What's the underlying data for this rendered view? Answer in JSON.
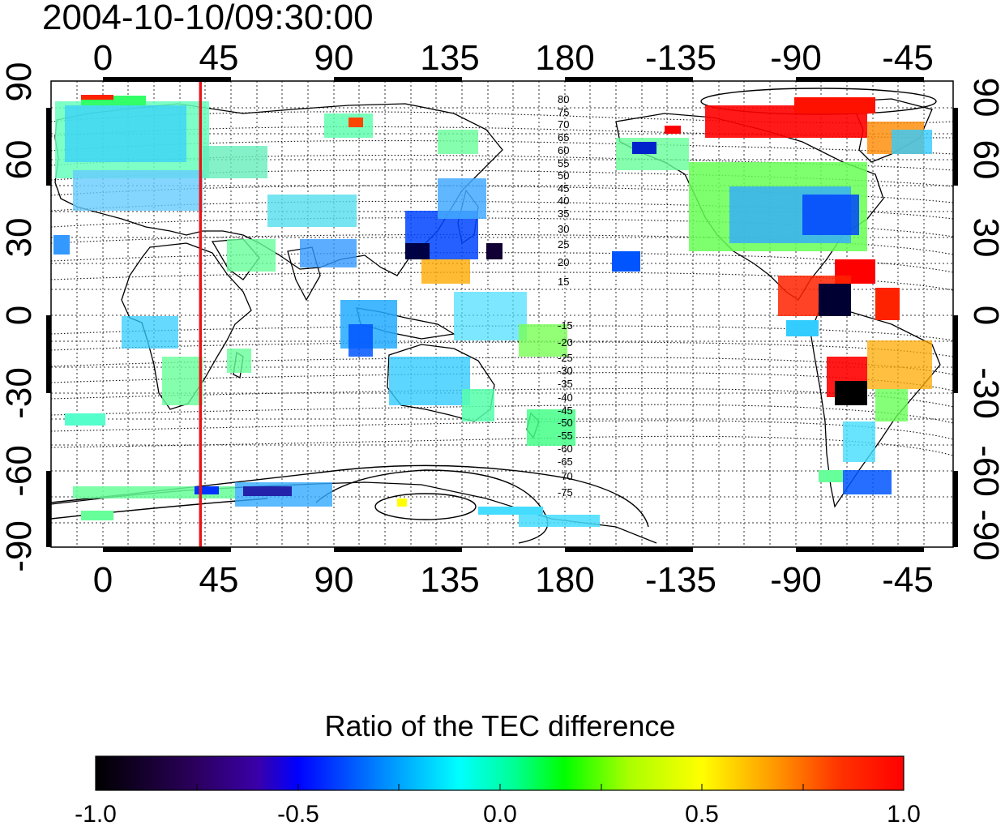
{
  "title": "2004-10-10/09:30:00",
  "lon_ticks": [
    "0",
    "45",
    "90",
    "135",
    "180",
    "-135",
    "-90",
    "-45"
  ],
  "lat_ticks": [
    "90",
    "60",
    "30",
    "0",
    "-30",
    "-60",
    "-90"
  ],
  "contour_labels": [
    "80",
    "75",
    "70",
    "65",
    "60",
    "55",
    "50",
    "45",
    "40",
    "35",
    "30",
    "25",
    "20",
    "15",
    "-15",
    "-20",
    "-25",
    "-30",
    "-35",
    "-40",
    "-45",
    "-50",
    "-55",
    "-60",
    "-65",
    "-70",
    "-75"
  ],
  "meridian_line_longitude": 38,
  "colors": {
    "meridian_line": "#e8141c",
    "frame": "#000000"
  },
  "colorbar": {
    "title": "Ratio of the TEC difference",
    "tick_labels": [
      "-1.0",
      "-0.5",
      "0.0",
      "0.5",
      "1.0"
    ],
    "colormap_stops": [
      "#000000",
      "#2a005a",
      "#3a00a8",
      "#0000ff",
      "#0090ff",
      "#00ffff",
      "#00ff90",
      "#00ff00",
      "#aaff00",
      "#ffff00",
      "#ff9900",
      "#ff3300",
      "#ff0000"
    ]
  }
}
